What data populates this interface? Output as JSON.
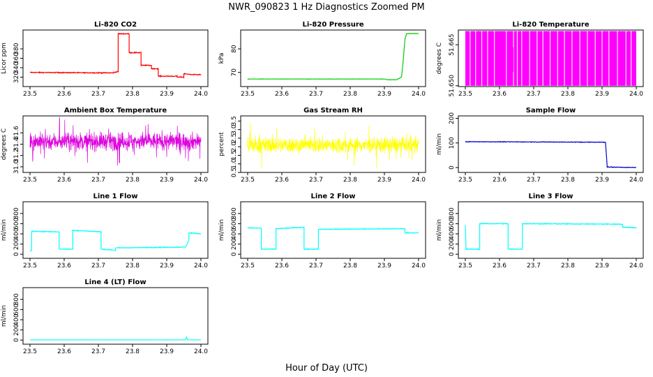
{
  "figure": {
    "title": "NWR_090823  1 Hz Diagnostics Zoomed PM",
    "xlabel": "Hour of Day (UTC)"
  },
  "chart_data": [
    {
      "type": "line",
      "title": "Li-820 CO2",
      "ylabel": "Licor ppm",
      "color": "#ff0000",
      "xlim": [
        23.5,
        24.0
      ],
      "ylim": [
        300,
        420
      ],
      "xticks": [
        "23.5",
        "23.6",
        "23.7",
        "23.8",
        "23.9",
        "24.0"
      ],
      "yticks": [
        {
          "v": 320,
          "label": "320"
        },
        {
          "v": 340,
          "label": "340"
        },
        {
          "v": 360,
          "label": "360"
        },
        {
          "v": 380,
          "label": "380"
        }
      ],
      "noise": 0.8,
      "x": [
        23.5,
        23.745,
        23.745,
        23.758,
        23.758,
        23.79,
        23.79,
        23.825,
        23.825,
        23.855,
        23.855,
        23.875,
        23.875,
        23.93,
        23.93,
        23.95,
        23.95,
        23.96,
        23.96,
        24.0
      ],
      "y": [
        330,
        329,
        330,
        332,
        412,
        412,
        372,
        372,
        345,
        345,
        338,
        338,
        322,
        322,
        320,
        320,
        327,
        327,
        326,
        325
      ]
    },
    {
      "type": "line",
      "title": "Li-820 Pressure",
      "ylabel": "kPa",
      "color": "#00cc00",
      "xlim": [
        23.5,
        24.0
      ],
      "ylim": [
        64,
        88
      ],
      "xticks": [
        "23.5",
        "23.6",
        "23.7",
        "23.8",
        "23.9",
        "24.0"
      ],
      "yticks": [
        {
          "v": 70,
          "label": "70"
        },
        {
          "v": 80,
          "label": "80"
        }
      ],
      "noise": 0.05,
      "x": [
        23.5,
        23.9,
        23.91,
        23.935,
        23.95,
        23.955,
        23.96,
        23.965,
        23.975,
        24.0
      ],
      "y": [
        67.2,
        67.2,
        66.9,
        66.9,
        68,
        75,
        84,
        86.5,
        86.5,
        86.5
      ]
    },
    {
      "type": "band",
      "title": "Li-820 Temperature",
      "ylabel": "degrees C",
      "color": "#ff00ff",
      "xlim": [
        23.5,
        24.0
      ],
      "ylim": [
        51.6497,
        51.6704
      ],
      "xticks": [
        "23.5",
        "23.6",
        "23.7",
        "23.8",
        "23.9",
        "24.0"
      ],
      "yticks": [
        {
          "v": 51.65,
          "label": "51.650"
        },
        {
          "v": 51.665,
          "label": "51.665"
        }
      ],
      "band": {
        "x_start": 23.5,
        "x_end": 24.0,
        "y_low": 51.65,
        "y_high": 51.67,
        "gaps": [
          23.514,
          23.53,
          23.548,
          23.565,
          23.585,
          23.62,
          23.641,
          23.652,
          23.665,
          23.688,
          23.71,
          23.727,
          23.748,
          23.77,
          23.79,
          23.812,
          23.835,
          23.857,
          23.88,
          23.9,
          23.92,
          23.945,
          23.97,
          23.985
        ]
      }
    },
    {
      "type": "noise",
      "title": "Ambient Box Temperature",
      "ylabel": "degrees C",
      "color": "#dd00dd",
      "xlim": [
        23.5,
        24.0
      ],
      "ylim": [
        30.9,
        31.9
      ],
      "xticks": [
        "23.5",
        "23.6",
        "23.7",
        "23.8",
        "23.9",
        "24.0"
      ],
      "yticks": [
        {
          "v": 31.0,
          "label": "31.0"
        },
        {
          "v": 31.2,
          "label": "31.2"
        },
        {
          "v": 31.4,
          "label": "31.4"
        },
        {
          "v": 31.6,
          "label": "31.6"
        }
      ],
      "mean": 31.45,
      "spread": 0.13,
      "max": 31.88,
      "min": 30.92
    },
    {
      "type": "noise",
      "title": "Gas Stream RH",
      "ylabel": "percent",
      "color": "#ffff00",
      "xlim": [
        23.5,
        24.0
      ],
      "ylim": [
        0.5,
        3.8
      ],
      "xticks": [
        "23.5",
        "23.6",
        "23.7",
        "23.8",
        "23.9",
        "24.0"
      ],
      "yticks": [
        {
          "v": 0.5,
          "label": "0.5"
        },
        {
          "v": 1.0,
          "label": "1.0"
        },
        {
          "v": 1.5,
          "label": "1.5"
        },
        {
          "v": 2.0,
          "label": "2.0"
        },
        {
          "v": 2.5,
          "label": "2.5"
        },
        {
          "v": 3.0,
          "label": "3.0"
        },
        {
          "v": 3.5,
          "label": "3.5"
        }
      ],
      "mean": 2.1,
      "spread": 0.4,
      "max": 3.5,
      "min": 0.6
    },
    {
      "type": "line",
      "title": "Sample Flow",
      "ylabel": "ml/min",
      "color": "#0000cc",
      "xlim": [
        23.5,
        24.0
      ],
      "ylim": [
        -20,
        210
      ],
      "xticks": [
        "23.5",
        "23.6",
        "23.7",
        "23.8",
        "23.9",
        "24.0"
      ],
      "yticks": [
        {
          "v": 0,
          "label": "0"
        },
        {
          "v": 100,
          "label": "100"
        },
        {
          "v": 200,
          "label": "200"
        }
      ],
      "noise": 1.0,
      "x": [
        23.5,
        23.91,
        23.915,
        24.0
      ],
      "y": [
        105,
        103,
        2,
        0
      ]
    },
    {
      "type": "line",
      "title": "Line 1 Flow",
      "ylabel": "ml/min",
      "color": "#00ffff",
      "xlim": [
        23.5,
        24.0
      ],
      "ylim": [
        -80,
        1030
      ],
      "xticks": [
        "23.5",
        "23.6",
        "23.7",
        "23.8",
        "23.9",
        "24.0"
      ],
      "yticks": [
        {
          "v": 0,
          "label": "0"
        },
        {
          "v": 200,
          "label": "200"
        },
        {
          "v": 400,
          "label": "400"
        },
        {
          "v": 600,
          "label": "600"
        },
        {
          "v": 800,
          "label": "800"
        }
      ],
      "noise": 6,
      "x": [
        23.5,
        23.505,
        23.505,
        23.585,
        23.585,
        23.625,
        23.625,
        23.708,
        23.708,
        23.75,
        23.75,
        23.955,
        23.955,
        23.965,
        23.965,
        24.0
      ],
      "y": [
        70,
        70,
        450,
        440,
        100,
        100,
        470,
        440,
        100,
        80,
        125,
        140,
        140,
        280,
        420,
        400
      ]
    },
    {
      "type": "line",
      "title": "Line 2 Flow",
      "ylabel": "ml/min",
      "color": "#00ffff",
      "xlim": [
        23.5,
        24.0
      ],
      "ylim": [
        -80,
        1030
      ],
      "xticks": [
        "23.5",
        "23.6",
        "23.7",
        "23.8",
        "23.9",
        "24.0"
      ],
      "yticks": [
        {
          "v": 0,
          "label": "0"
        },
        {
          "v": 200,
          "label": "200"
        },
        {
          "v": 400,
          "label": "400"
        },
        {
          "v": 600,
          "label": "600"
        },
        {
          "v": 800,
          "label": "800"
        }
      ],
      "noise": 6,
      "x": [
        23.5,
        23.54,
        23.54,
        23.583,
        23.583,
        23.665,
        23.665,
        23.707,
        23.707,
        23.96,
        23.96,
        24.0
      ],
      "y": [
        520,
        510,
        100,
        100,
        500,
        530,
        100,
        100,
        490,
        500,
        420,
        420
      ]
    },
    {
      "type": "line",
      "title": "Line 3 Flow",
      "ylabel": "ml/min",
      "color": "#00ffff",
      "xlim": [
        23.5,
        24.0
      ],
      "ylim": [
        -80,
        1030
      ],
      "xticks": [
        "23.5",
        "23.6",
        "23.7",
        "23.8",
        "23.9",
        "24.0"
      ],
      "yticks": [
        {
          "v": 0,
          "label": "0"
        },
        {
          "v": 200,
          "label": "200"
        },
        {
          "v": 400,
          "label": "400"
        },
        {
          "v": 600,
          "label": "600"
        },
        {
          "v": 800,
          "label": "800"
        }
      ],
      "noise": 7,
      "x": [
        23.5,
        23.502,
        23.502,
        23.542,
        23.542,
        23.625,
        23.625,
        23.667,
        23.667,
        23.96,
        23.96,
        24.0
      ],
      "y": [
        570,
        100,
        100,
        100,
        600,
        600,
        100,
        100,
        600,
        590,
        530,
        520
      ]
    },
    {
      "type": "line",
      "title": "Line 4 (LT) Flow",
      "ylabel": "ml/min",
      "color": "#00ffff",
      "xlim": [
        23.5,
        24.0
      ],
      "ylim": [
        -80,
        1030
      ],
      "xticks": [
        "23.5",
        "23.6",
        "23.7",
        "23.8",
        "23.9",
        "24.0"
      ],
      "yticks": [
        {
          "v": 0,
          "label": "0"
        },
        {
          "v": 200,
          "label": "200"
        },
        {
          "v": 400,
          "label": "400"
        },
        {
          "v": 600,
          "label": "600"
        },
        {
          "v": 800,
          "label": "800"
        }
      ],
      "noise": 1,
      "x": [
        23.5,
        23.955,
        23.958,
        23.961,
        24.0
      ],
      "y": [
        5,
        5,
        60,
        5,
        5
      ]
    }
  ]
}
